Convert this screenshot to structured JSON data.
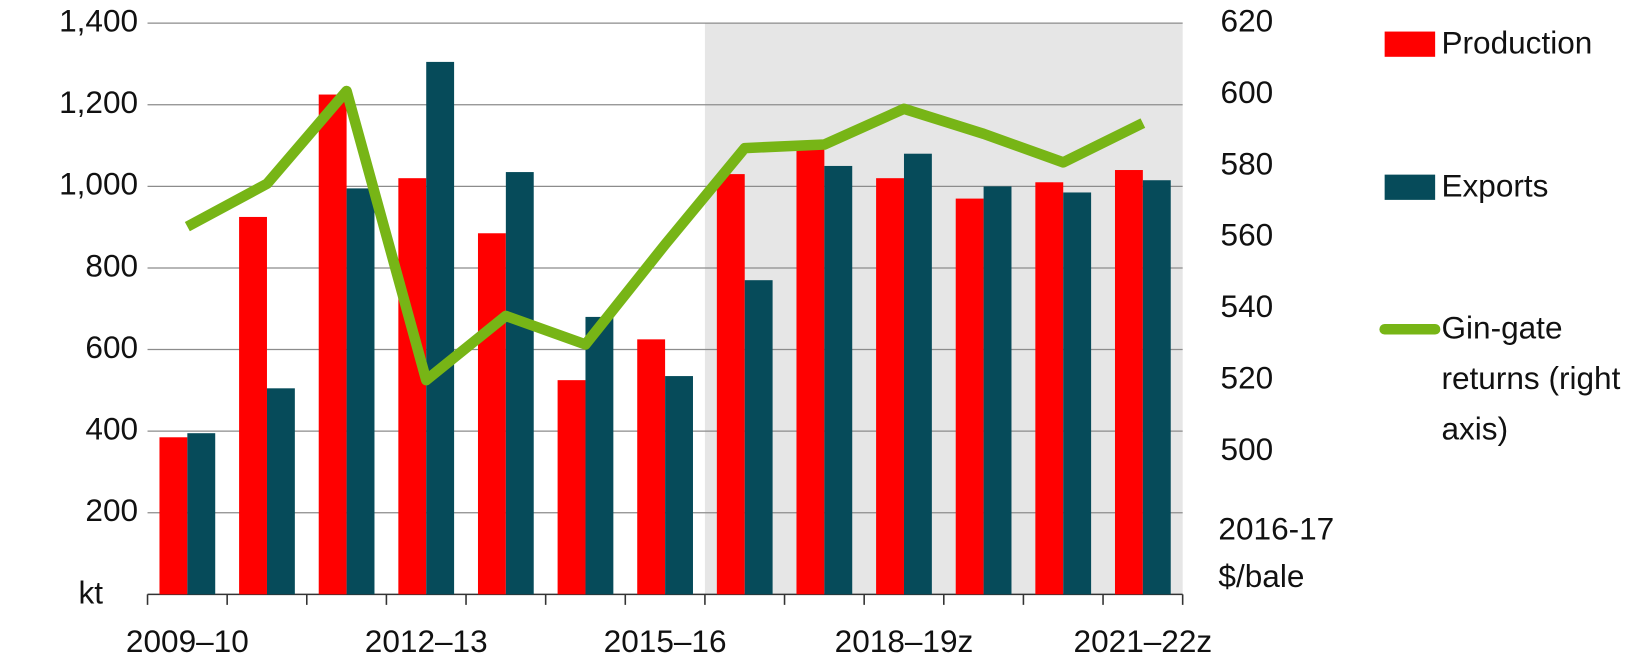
{
  "chart_data": {
    "type": "bar_line",
    "categories": [
      "2009–10",
      null,
      null,
      "2012–13",
      null,
      null,
      "2015–16",
      null,
      null,
      "2018–19z",
      null,
      null,
      "2021–22z"
    ],
    "series": [
      {
        "name": "Production",
        "type": "bar",
        "color": "#ff0000",
        "values": [
          385,
          925,
          1225,
          1020,
          885,
          525,
          625,
          1030,
          1095,
          1020,
          970,
          1010,
          1040
        ]
      },
      {
        "name": "Exports",
        "type": "bar",
        "color": "#064b5a",
        "values": [
          395,
          505,
          995,
          1305,
          1035,
          680,
          535,
          770,
          1050,
          1080,
          1000,
          985,
          1015
        ]
      },
      {
        "name": "Gin-gate returns (right axis)",
        "type": "line",
        "axis": "y2",
        "color": "#77b516",
        "values": [
          563,
          575,
          601,
          520,
          538,
          530,
          558,
          585,
          586,
          596,
          589,
          581,
          592
        ]
      }
    ],
    "ylim": [
      0,
      1400
    ],
    "yticks": [
      200,
      400,
      600,
      800,
      {
        "value": 1000,
        "label": "1,000"
      },
      {
        "value": 1200,
        "label": "1,200"
      },
      {
        "value": 1400,
        "label": "1,400"
      }
    ],
    "y2lim": [
      460,
      620
    ],
    "y2ticks": [
      500,
      520,
      540,
      560,
      580,
      600,
      620
    ],
    "ylabel": "kt",
    "y2label": [
      "2016-17",
      "$/bale"
    ],
    "shade_from": 7,
    "grid": true,
    "legend": "right"
  }
}
